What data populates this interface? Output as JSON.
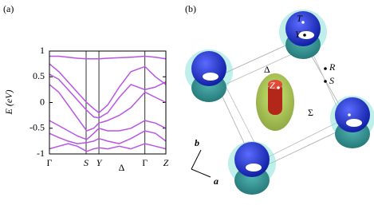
{
  "chart_data": {
    "type": "line",
    "panel_label": "(a)",
    "y_label": "E (eV)",
    "color": "#b955e3",
    "x": [
      0,
      0.08,
      0.16,
      0.24,
      0.32,
      0.38,
      0.425,
      0.5,
      0.6,
      0.7,
      0.82,
      0.91,
      1
    ],
    "series": [
      {
        "values": [
          0.9,
          0.9,
          0.88,
          0.86,
          0.85,
          0.85,
          0.85,
          0.86,
          0.87,
          0.88,
          0.9,
          0.88,
          0.85
        ]
      },
      {
        "values": [
          0.75,
          0.6,
          0.4,
          0.2,
          0.0,
          -0.12,
          -0.2,
          -0.05,
          0.3,
          0.6,
          0.7,
          0.5,
          0.35
        ]
      },
      {
        "values": [
          0.55,
          0.45,
          0.25,
          0.05,
          -0.15,
          -0.28,
          -0.3,
          -0.2,
          0.1,
          0.35,
          0.25,
          0.3,
          0.4
        ]
      },
      {
        "values": [
          0.35,
          0.2,
          -0.05,
          -0.3,
          -0.55,
          -0.5,
          -0.4,
          -0.35,
          -0.25,
          -0.1,
          0.2,
          0.1,
          0.0
        ]
      },
      {
        "values": [
          -0.35,
          -0.45,
          -0.55,
          -0.65,
          -0.72,
          -0.6,
          -0.5,
          -0.55,
          -0.55,
          -0.5,
          -0.35,
          -0.4,
          -0.5
        ]
      },
      {
        "values": [
          -0.6,
          -0.68,
          -0.75,
          -0.8,
          -0.78,
          -0.75,
          -0.7,
          -0.75,
          -0.8,
          -0.7,
          -0.55,
          -0.6,
          -0.75
        ]
      },
      {
        "values": [
          -0.9,
          -0.85,
          -0.8,
          -0.85,
          -0.95,
          -0.9,
          -0.88,
          -0.9,
          -0.85,
          -0.9,
          -0.8,
          -0.85,
          -0.9
        ]
      }
    ],
    "xlim": [
      0,
      1
    ],
    "xticks": [
      {
        "value": 0,
        "label": "Γ"
      },
      {
        "value": 0.315,
        "label": "S"
      },
      {
        "value": 0.425,
        "label": "Y"
      },
      {
        "value": 0.82,
        "label": "Γ"
      },
      {
        "value": 1,
        "label": "Z"
      }
    ],
    "annotations": [
      {
        "text": "Δ",
        "x": 0.62
      }
    ],
    "ylim": [
      -1,
      1
    ],
    "yticks": [
      -1,
      -0.5,
      0,
      0.5,
      1
    ]
  },
  "fermi_surface": {
    "panel_label": "(b)",
    "labels": [
      "T",
      "Y",
      "Δ",
      "R",
      "S",
      "Z",
      "Σ",
      "b",
      "a"
    ]
  }
}
